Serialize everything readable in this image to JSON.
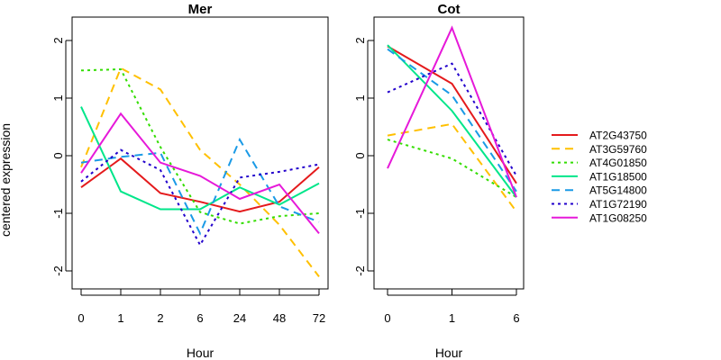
{
  "ylabel": "centered expression",
  "chart_data": [
    {
      "type": "line",
      "title": "Mer",
      "xlabel": "Hour",
      "categories": [
        "0",
        "1",
        "2",
        "6",
        "24",
        "48",
        "72"
      ],
      "ylim": [
        -2.2,
        2.3
      ],
      "yticks": [
        -2,
        -1,
        0,
        1,
        2
      ],
      "grid": false,
      "series": [
        {
          "name": "AT2G43750",
          "values": [
            -0.55,
            -0.05,
            -0.65,
            -0.8,
            -0.97,
            -0.8,
            -0.2
          ]
        },
        {
          "name": "AT3G59760",
          "values": [
            -0.2,
            1.52,
            1.15,
            0.1,
            -0.5,
            -1.2,
            -2.1
          ]
        },
        {
          "name": "AT4G01850",
          "values": [
            1.48,
            1.5,
            0.15,
            -0.98,
            -1.18,
            -1.05,
            -1.0
          ]
        },
        {
          "name": "AT1G18500",
          "values": [
            0.85,
            -0.62,
            -0.93,
            -0.93,
            -0.55,
            -0.85,
            -0.48
          ]
        },
        {
          "name": "AT5G14800",
          "values": [
            -0.12,
            -0.02,
            0.05,
            -1.35,
            0.28,
            -0.88,
            -1.15
          ]
        },
        {
          "name": "AT1G72190",
          "values": [
            -0.45,
            0.1,
            -0.25,
            -1.55,
            -0.38,
            -0.28,
            -0.15
          ]
        },
        {
          "name": "AT1G08250",
          "values": [
            -0.3,
            0.73,
            -0.12,
            -0.35,
            -0.75,
            -0.5,
            -1.35
          ]
        }
      ]
    },
    {
      "type": "line",
      "title": "Cot",
      "xlabel": "Hour",
      "categories": [
        "0",
        "1",
        "6"
      ],
      "ylim": [
        -2.2,
        2.3
      ],
      "yticks": [
        -2,
        -1,
        0,
        1,
        2
      ],
      "grid": false,
      "series": [
        {
          "name": "AT2G43750",
          "values": [
            1.9,
            1.25,
            -0.48
          ]
        },
        {
          "name": "AT3G59760",
          "values": [
            0.35,
            0.55,
            -0.97
          ]
        },
        {
          "name": "AT4G01850",
          "values": [
            0.28,
            -0.05,
            -0.72
          ]
        },
        {
          "name": "AT1G18500",
          "values": [
            1.92,
            0.78,
            -0.72
          ]
        },
        {
          "name": "AT5G14800",
          "values": [
            1.85,
            1.05,
            -0.62
          ]
        },
        {
          "name": "AT1G72190",
          "values": [
            1.1,
            1.6,
            -0.35
          ]
        },
        {
          "name": "AT1G08250",
          "values": [
            -0.22,
            2.22,
            -0.72
          ]
        }
      ]
    }
  ],
  "legend": {
    "position": "right",
    "entries": [
      {
        "name": "AT2G43750",
        "color": "#e41a1c",
        "dash": "solid"
      },
      {
        "name": "AT3G59760",
        "color": "#ffc000",
        "dash": "dashed"
      },
      {
        "name": "AT4G01850",
        "color": "#33dd00",
        "dash": "dotted"
      },
      {
        "name": "AT1G18500",
        "color": "#00e68a",
        "dash": "solid"
      },
      {
        "name": "AT5G14800",
        "color": "#1a9ae6",
        "dash": "dashed"
      },
      {
        "name": "AT1G72190",
        "color": "#2200cc",
        "dash": "dotted"
      },
      {
        "name": "AT1G08250",
        "color": "#e619d9",
        "dash": "solid"
      }
    ]
  }
}
